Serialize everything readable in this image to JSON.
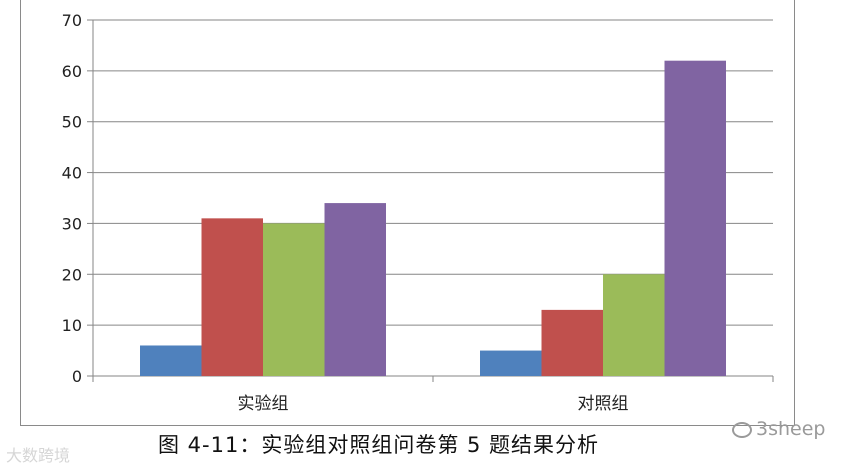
{
  "chart_data": {
    "type": "bar",
    "categories": [
      "实验组",
      "对照组"
    ],
    "series": [
      {
        "color": "#4f81bd",
        "values": [
          6,
          5
        ]
      },
      {
        "color": "#c0504d",
        "values": [
          31,
          13
        ]
      },
      {
        "color": "#9bbb59",
        "values": [
          30,
          20
        ]
      },
      {
        "color": "#8064a2",
        "values": [
          34,
          62
        ]
      }
    ],
    "title": "",
    "xlabel": "",
    "ylabel": "",
    "ylim": [
      0,
      70
    ],
    "yticks": [
      0,
      10,
      20,
      30,
      40,
      50,
      60,
      70
    ],
    "grid": true,
    "legend": "none"
  },
  "caption": "图 4-11：实验组对照组问卷第 5 题结果分析",
  "watermarks": {
    "left": "大数跨境",
    "right": "3sheep"
  }
}
